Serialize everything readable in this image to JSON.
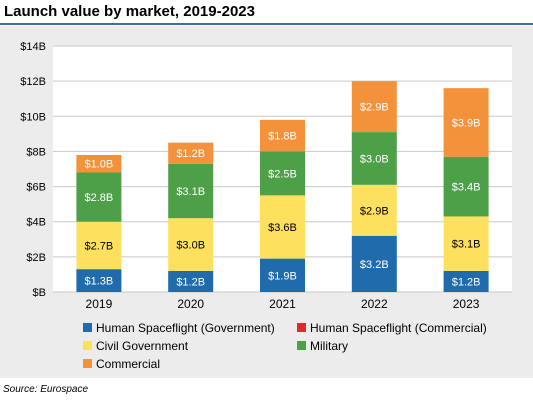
{
  "title": "Launch value by market, 2019-2023",
  "source": "Source: Eurospace",
  "colors": {
    "title_rule": "#3b6ea8",
    "panel": "#ececec",
    "plot_bg": "#ffffff",
    "grid": "#c8c8c8",
    "text": "#000000"
  },
  "chart_data": {
    "type": "bar",
    "stacked": true,
    "categories": [
      "2019",
      "2020",
      "2021",
      "2022",
      "2023"
    ],
    "ylim": [
      0,
      14
    ],
    "yticks": [
      0,
      2,
      4,
      6,
      8,
      10,
      12,
      14
    ],
    "ytick_labels": [
      "$B",
      "$2B",
      "$4B",
      "$6B",
      "$8B",
      "$10B",
      "$12B",
      "$14B"
    ],
    "grid": true,
    "legend_position": "bottom",
    "series": [
      {
        "name": "Human Spaceflight (Government)",
        "color": "#1f6bab",
        "label_color": "#ffffff",
        "values": [
          1.3,
          1.2,
          1.9,
          3.2,
          1.2
        ],
        "labels": [
          "$1.3B",
          "$1.2B",
          "$1.9B",
          "$3.2B",
          "$1.2B"
        ]
      },
      {
        "name": "Human Spaceflight (Commercial)",
        "color": "#e02a27",
        "label_color": "#ffffff",
        "values": [
          0,
          0,
          0,
          0,
          0
        ],
        "labels": [
          "",
          "",
          "",
          "",
          ""
        ]
      },
      {
        "name": "Civil Government",
        "color": "#fde05d",
        "label_color": "#000000",
        "values": [
          2.7,
          3.0,
          3.6,
          2.9,
          3.1
        ],
        "labels": [
          "$2.7B",
          "$3.0B",
          "$3.6B",
          "$2.9B",
          "$3.1B"
        ]
      },
      {
        "name": "Military",
        "color": "#4ea048",
        "label_color": "#ffffff",
        "values": [
          2.8,
          3.1,
          2.5,
          3.0,
          3.4
        ],
        "labels": [
          "$2.8B",
          "$3.1B",
          "$2.5B",
          "$3.0B",
          "$3.4B"
        ]
      },
      {
        "name": "Commercial",
        "color": "#f3923b",
        "label_color": "#ffffff",
        "values": [
          1.0,
          1.2,
          1.8,
          2.9,
          3.9
        ],
        "labels": [
          "$1.0B",
          "$1.2B",
          "$1.8B",
          "$2.9B",
          "$3.9B"
        ]
      }
    ]
  }
}
